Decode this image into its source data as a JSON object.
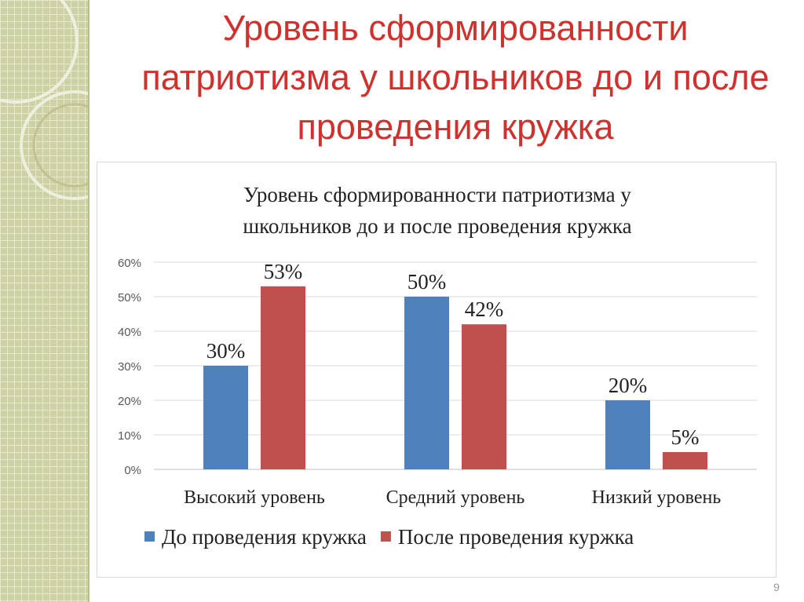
{
  "slide": {
    "title": "Уровень сформированности патриотизма у школьников до и после проведения кружка",
    "page_number": "9"
  },
  "colors": {
    "title": "#d0312d",
    "series_before": "#4f81bd",
    "series_after": "#c0504d",
    "side_panel": "#cdd1a4"
  },
  "chart_data": {
    "type": "bar",
    "title": "Уровень сформированности патриотизма у школьников до и после проведения кружка",
    "categories": [
      "Высокий уровень",
      "Средний уровень",
      "Низкий уровень"
    ],
    "series": [
      {
        "name": "До проведения кружка",
        "values": [
          30,
          50,
          20
        ],
        "labels": [
          "30%",
          "50%",
          "20%"
        ],
        "color": "#4f81bd"
      },
      {
        "name": "После проведения куржка",
        "values": [
          53,
          42,
          5
        ],
        "labels": [
          "53%",
          "42%",
          "5%"
        ],
        "color": "#c0504d"
      }
    ],
    "y_ticks": [
      "0%",
      "10%",
      "20%",
      "30%",
      "40%",
      "50%",
      "60%"
    ],
    "ylim": [
      0,
      60
    ],
    "ylabel": "",
    "xlabel": "",
    "grid": true,
    "legend_position": "bottom"
  }
}
